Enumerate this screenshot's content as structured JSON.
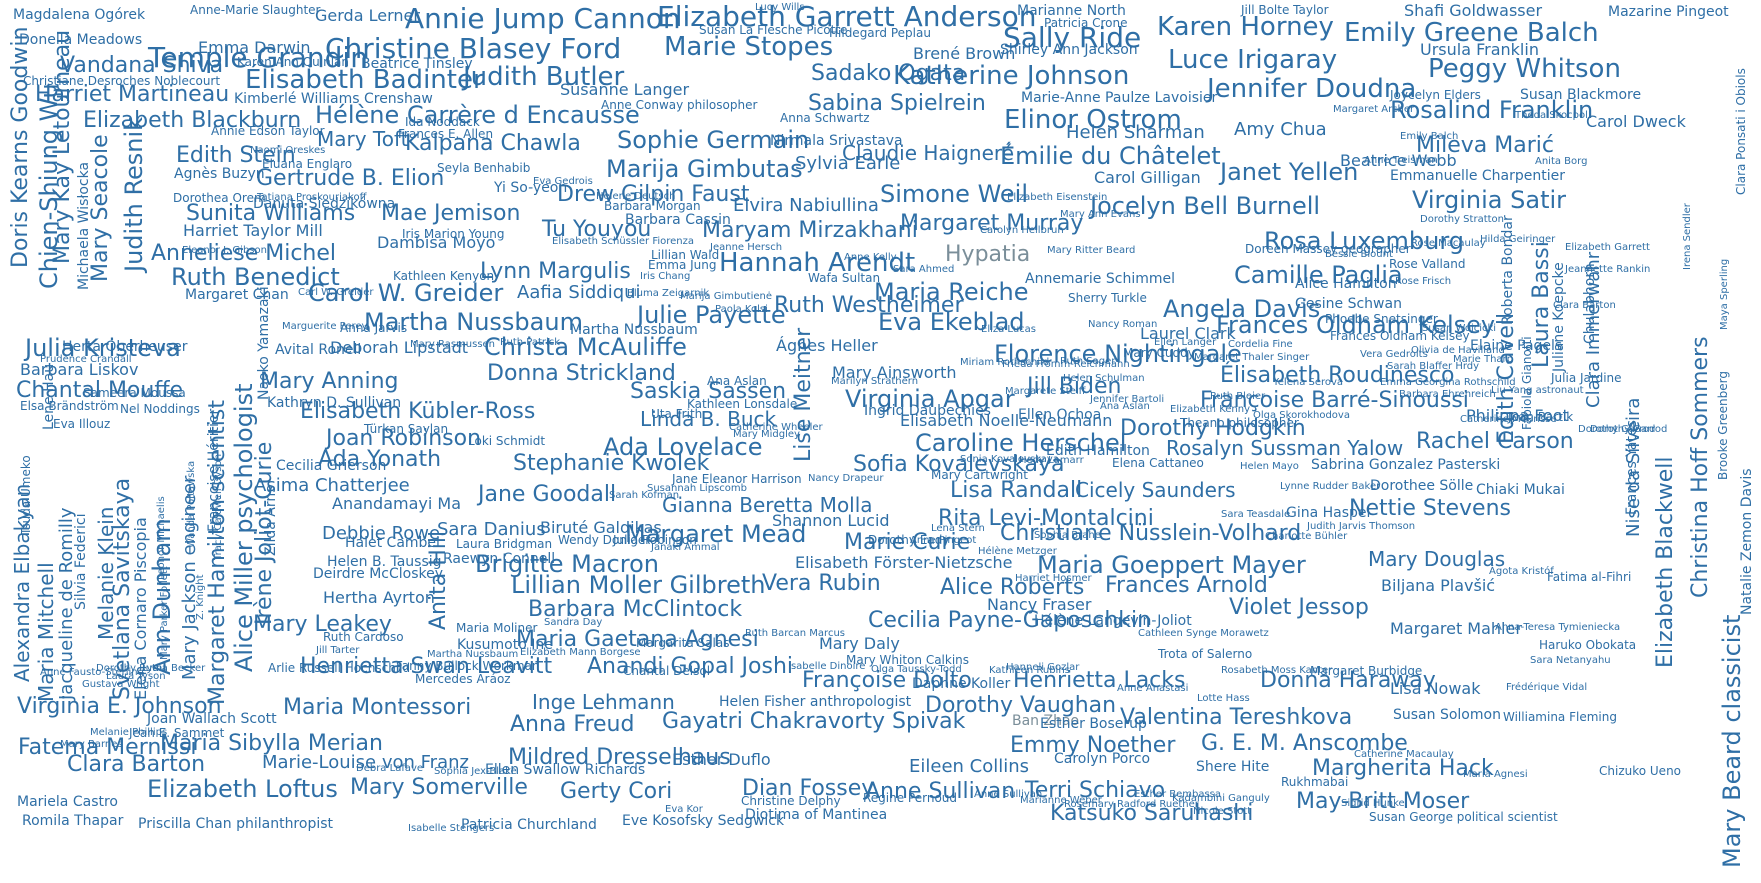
{
  "palette": {
    "primary": "#2f6fa6",
    "muted": "#7a8e99",
    "background": "#ffffff"
  },
  "words": {
    "w1": "Annie Jump Cannon",
    "w2": "Elizabeth Garrett Anderson",
    "w3": "Temple Grandin",
    "w4": "Christine Blasey Ford",
    "w5": "Marie Stopes",
    "w6": "Sally Ride",
    "w7": "Karen Horney",
    "w8": "Emily Greene Balch",
    "w9": "Vandana Shiva",
    "w10": "Luce Irigaray",
    "w11": "Peggy Whitson",
    "w12": "Harriet Martineau",
    "w13": "Élisabeth Badinter",
    "w14": "Judith Butler",
    "w15": "Sadako Ogata",
    "w16": "Katherine Johnson",
    "w17": "Jennifer Doudna",
    "w18": "Elizabeth Blackburn",
    "w19": "Hélène Carrère d Encausse",
    "w20": "Sabina Spielrein",
    "w21": "Elinor Ostrom",
    "w22": "Rosalind Franklin",
    "w23": "Edith Stein",
    "w24": "Mary Toft",
    "w25": "Kalpana Chawla",
    "w26": "Sophie Germain",
    "w27": "Claudie Haigneré",
    "w28": "Helen Sharman",
    "w29": "Amy Chua",
    "w30": "Mileva Marić",
    "w31": "Gertrude B. Elion",
    "w32": "Marija Gimbutas",
    "w33": "Émilie du Châtelet",
    "w34": "Janet Yellen",
    "w35": "Sunita Williams",
    "w36": "Drew Gilpin Faust",
    "w37": "Simone Weil",
    "w38": "Jocelyn Bell Burnell",
    "w39": "Virginia Satir",
    "w40": "Mae Jemison",
    "w41": "Tu Youyou",
    "w42": "Maryam Mirzakhani",
    "w43": "Margaret Murray",
    "w44": "Anneliese Michel",
    "w45": "Hannah Arendt",
    "w46": "Hypatia",
    "w47": "Rosa Luxemburg",
    "w48": "Ruth Benedict",
    "w49": "Lynn Margulis",
    "w50": "Camille Paglia",
    "w51": "Carol W. Greider",
    "w52": "Maria Reiche",
    "w53": "Ruth Westheimer",
    "w54": "Martha Nussbaum",
    "w55": "Julie Payette",
    "w56": "Eva Ekeblad",
    "w57": "Angela Davis",
    "w58": "Frances Oldham Kelsey",
    "w59": "Julia Kristeva",
    "w60": "Christa McAuliffe",
    "w61": "Florence Nightingale",
    "w62": "Donna Strickland",
    "w63": "Élisabeth Roudinesco",
    "w64": "Mary Anning",
    "w65": "Virginia Apgar",
    "w66": "Jill Biden",
    "w67": "Françoise Barré-Sinoussi",
    "w68": "Chantal Mouffe",
    "w69": "Saskia Sassen",
    "w70": "Elisabeth Kübler-Ross",
    "w71": "Joan Robinson",
    "w72": "Linda B. Buck",
    "w73": "Dorothy Hodgkin",
    "w74": "Rachel Carson",
    "w75": "Ada Lovelace",
    "w76": "Caroline Herschel",
    "w77": "Ada Yonath",
    "w78": "Stephanie Kwolek",
    "w79": "Sofia Kovalevskaya",
    "w80": "Rosalyn Sussman Yalow",
    "w81": "Jane Goodall",
    "w82": "Lisa Randall",
    "w83": "Cicely Saunders",
    "w84": "Gianna Beretta Molla",
    "w85": "Rita Levi-Montalcini",
    "w86": "Nettie Stevens",
    "w87": "Margaret Mead",
    "w88": "Marie Curie",
    "w89": "Christiane Nüsslein-Volhard",
    "w90": "Brigitte Macron",
    "w91": "Maria Goeppert Mayer",
    "w92": "Mary Douglas",
    "w93": "Lillian Moller Gilbreth",
    "w94": "Vera Rubin",
    "w95": "Alice Roberts",
    "w96": "Frances Arnold",
    "w97": "Barbara McClintock",
    "w98": "Cecilia Payne-Gaposchkin",
    "w99": "Violet Jessop",
    "w100": "Mary Leakey",
    "w101": "Maria Gaetana Agnesi",
    "w102": "Henrietta Swan Leavitt",
    "w103": "Anandi Gopal Joshi",
    "w104": "Françoise Dolto",
    "w105": "Henrietta Lacks",
    "w106": "Donna Haraway",
    "w107": "Virginia E. Johnson",
    "w108": "Maria Montessori",
    "w109": "Inge Lehmann",
    "w110": "Dorothy Vaughan",
    "w111": "Valentina Tereshkova",
    "w112": "Fatema Mernissi",
    "w113": "Maria Sibylla Merian",
    "w114": "Anna Freud",
    "w115": "Gayatri Chakravorty Spivak",
    "w116": "Emmy Noether",
    "w117": "G. E. M. Anscombe",
    "w118": "Clara Barton",
    "w119": "Mildred Dresselhaus",
    "w120": "Margherita Hack",
    "w121": "Elizabeth Loftus",
    "w122": "Mary Somerville",
    "w123": "Gerty Cori",
    "w124": "Dian Fossey",
    "w125": "Anne Sullivan",
    "w126": "Terri Schiavo",
    "w127": "May-Britt Moser",
    "w128": "Katsuko Saruhashi",
    "w129": "Marie-Louise von Franz",
    "w130": "Gerda Lerner",
    "w131": "Marianne North",
    "w132": "Shafi Goldwasser",
    "w133": "Mazarine Pingeot",
    "w134": "Emma Darwin",
    "w135": "Brené Brown",
    "w136": "Shirley Ann Jackson",
    "w137": "Ursula Franklin",
    "w138": "Susanne Langer",
    "w139": "Nirmala Srivastava",
    "w140": "Carol Dweck",
    "w141": "Sylvia Earle",
    "w142": "Carol Gilligan",
    "w143": "Beatrice Webb",
    "w144": "Emmanuelle Charpentier",
    "w145": "Dambisa Moyo",
    "w146": "Elvira Nabiullina",
    "w147": "Annemarie Schimmel",
    "w148": "Laurel Clark",
    "w149": "Barbara Liskov",
    "w150": "Deborah Lipstadt",
    "w151": "Carl W. Greider",
    "w152": "Aafia Siddiqui",
    "w153": "Mary Ainsworth",
    "w154": "Ágnes Heller",
    "w155": "Elaine Pagels",
    "w156": "Philippa Foot",
    "w157": "Sabrina Gonzalez Pasterski",
    "w158": "Chiaki Mukai",
    "w159": "Asima Chatterjee",
    "w160": "Anandamayi Ma",
    "w161": "Sara Danius",
    "w162": "Debbie Rowe",
    "w163": "Biruté Galdikas",
    "w164": "Shannon Lucid",
    "w165": "Gina Haspel",
    "w166": "Hertha Ayrton",
    "w167": "Deirdre McCloskey",
    "w168": "Elisabeth Förster-Nietzsche",
    "w169": "Biljana Plavšić",
    "w170": "Nancy Fraser",
    "w171": "Mary Daly",
    "w172": "Margaret Mahler",
    "w173": "Lisa Nowak",
    "w174": "Joan Wallach Scott",
    "w175": "Esther Duflo",
    "w176": "Eileen Collins",
    "w177": "Ban Zhao",
    "w178": "Romila Thapar",
    "w179": "Priscilla Chan philanthropist",
    "w180": "Patricia Churchland",
    "w181": "Eve Kosofsky Sedgwick",
    "w182": "Diotima of Mantinea",
    "w183": "Carolyn Porco",
    "w184": "Shere Hite",
    "w185": "Mariela Castro",
    "w186": "Ellen Swallow Richards",
    "w187": "Magdalena Ogórek",
    "w188": "Donella Meadows",
    "w189": "Anne-Marie Slaughter",
    "w190": "Christiane Desroches Noblecourt",
    "w191": "Beatrice Tinsley",
    "w192": "Kimberlé Williams Crenshaw",
    "w193": "Annie Edson Taylor",
    "w194": "Agnès Buzyn",
    "w195": "Dorothea Orem",
    "w196": "Danuta Siedzikówna",
    "w197": "Harriet Taylor Mill",
    "w198": "Margaret Chan",
    "w199": "Herta Oberheuser",
    "w200": "Avital Ronell",
    "w201": "Kathryn D. Sullivan",
    "w202": "Cecilia Grierson",
    "w203": "Halet Cambel",
    "w204": "Helen B. Taussig",
    "w205": "Ruth Cardoso",
    "w206": "Kusumoto Ine",
    "w207": "Raewyn Connell",
    "w208": "Wendy Doniger",
    "w209": "Laura Bridgman",
    "w210": "Julia Robinson",
    "w211": "Ingrid Daubechies",
    "w212": "Ellen Ochoa",
    "w213": "Elisabeth Noelle-Neumann",
    "w214": "Edith Hamilton",
    "w215": "Dorothee Sölle",
    "w216": "Elena Cattaneo",
    "w217": "Sara Teasdale",
    "w218": "Alice Hamilton",
    "w219": "Gesine Schwan",
    "w220": "Phoebe Snetsinger",
    "w221": "Eleanor J. Gibson",
    "w222": "Kathleen Kenyon",
    "w223": "Lillian Wald",
    "w224": "Bluma Zeigarnik",
    "w225": "Eliza Lucas",
    "w226": "Martha Nussbaum",
    "w227": "Sarah Kofman",
    "w228": "Hélène Langevin-Joliot",
    "w229": "Mary Whiton Calkins",
    "w230": "Daphne Koller",
    "w231": "Helen Fisher anthropologist",
    "w232": "Esther Boserup",
    "w233": "Frances Oldham Kelsey",
    "w234": "Christine Delphy",
    "w235": "Isabelle Stengers",
    "w236": "Susan George political scientist",
    "w237": "Doris Kearns Goodwin",
    "w238": "Chien-Shiung Wu",
    "w239": "Mary Kay Letourneau",
    "w240": "Mary Seacole",
    "w241": "Judith Resnik",
    "w242": "Michaela Wisłocka",
    "w243": "Alexandra Elbakyan",
    "w244": "Maria Mitchell",
    "w245": "Jacqueline de Romilly",
    "w246": "Melanie Klein",
    "w247": "Svetlana Savitskaya",
    "w248": "Elena Cornaro Piscopia",
    "w249": "Ann Dunham",
    "w250": "Mary Jackson engineer",
    "w251": "Margaret Hamilton scientist",
    "w252": "Alice Miller psychologist",
    "w253": "Irène Joliot-Curie",
    "w254": "Naoko Yamazaki",
    "w255": "Anita Hill",
    "w256": "Lise Meitner",
    "w257": "Edith Cavell",
    "w258": "Laura Bassi",
    "w259": "Juliane Koepcke",
    "w260": "Clara Immerwahr",
    "w261": "Nise da Silveira",
    "w262": "Elizabeth Blackwell",
    "w263": "Christina Hoff Sommers",
    "w264": "Mary Beard classicist",
    "w265": "Natalie Zemon Davis",
    "w266": "Françoise Héritier",
    "w267": "Zilda Arns",
    "w268": "Silvia Federici",
    "w269": "Lene Hau",
    "w270": "Roberta Bondar",
    "w271": "Frances Yates",
    "w272": "Nancy Roman",
    "w273": "Mary Cuddy",
    "w274": "Rose Valland",
    "w275": "Ana Aslan",
    "w276": "Tsuda Umeko",
    "w277": "Sameera Moussa",
    "w278": "Eva Illouz",
    "w279": "Nel Noddings",
    "w280": "Elsa Brändström",
    "w281": "Yi So-yeon",
    "w282": "Ida Noddack",
    "w283": "Anna Schwartz",
    "w284": "Sonia Kovalevskaya",
    "w285": "Anita Borg",
    "w286": "Uta Frith",
    "w287": "Loki Schmidt",
    "w288": "Türkan Saylan",
    "w289": "Frances E. Allen",
    "w290": "Eluana Englaro",
    "w291": "Seyla Benhabib",
    "w292": "Barbara Cassin",
    "w293": "Barbara Morgan",
    "w294": "Emma Jung",
    "w295": "Wafa Sultan",
    "w296": "Sherry Turkle",
    "w297": "Charlotte Bühler",
    "w298": "Lucy Wills",
    "w299": "Eva Gedrois",
    "w300": "Regine Pernoud",
    "w301": "Anne Conway philosopher",
    "w302": "Karen Ann Quinlan",
    "w303": "Anne Treisman",
    "w304": "Rose Frisch",
    "w305": "Theda Skocpol",
    "w306": "Hildegard Peplau",
    "w307": "Patricia Crone",
    "w308": "Susan La Flesche Picotte",
    "w309": "Jill Bolte Taylor",
    "w310": "Joycelyn Elders",
    "w311": "Susan Blackmore",
    "w312": "Dorothy Garrod",
    "w313": "Marie-Anne Paulze Lavoisier",
    "w314": "Theano philosopher",
    "w315": "Olga Skorokhodova",
    "w316": "Jane Eleanor Harrison",
    "w317": "Susan Solomon",
    "w318": "Williamina Fleming",
    "w319": "Sigrid Hunke",
    "w320": "Rukhmabai",
    "w321": "Ana Aslan",
    "w322": "Kathleen Lonsdale",
    "w323": "Catherine Wheeler",
    "w324": "Lena Stern",
    "w325": "Dorothy Eady",
    "w326": "Janaki Ammal",
    "w327": "Susannah Lipscomb",
    "w328": "Nancy Drapeur",
    "w329": "Mary Cartwright",
    "w330": "Hedy Lamarr",
    "w331": "Sophia Brahe",
    "w332": "Anne Pingeot",
    "w333": "Hélène Metzger",
    "w334": "Harriet Hosmer",
    "w335": "Fatima al-Fihri",
    "w336": "Ágota Kristóf",
    "w337": "Cathleen Synge Morawetz",
    "w338": "Anna-Teresa Tymieniecka",
    "w339": "Haruko Obokata",
    "w340": "Sara Netanyahu",
    "w341": "Frédérique Vidal",
    "w342": "Helene Deutsch",
    "w343": "Marguerite Perey",
    "w344": "Tatiana Proskouriakoff",
    "w345": "Naomi Oreskes",
    "w346": "Prudence Crandall",
    "w347": "Bessie Blount",
    "w348": "Ruth Patrick",
    "w349": "Emily Balch",
    "w350": "Dorothy Stratton",
    "w351": "Marija Gimbutienė",
    "w352": "Paola Kolsi",
    "w353": "Ruth Sager",
    "w354": "Jennifer Bartoli",
    "w355": "Elizabeth Kenny",
    "w356": "Ruth Bleier",
    "w357": "Helen Mayo",
    "w358": "Lynne Rudder Baker",
    "w359": "Judith Jarvis Thomson",
    "w360": "Mary Midgley",
    "w361": "Iris Marion Young",
    "w362": "Elisabeth Schüssler Fiorenza",
    "w363": "Iris Chang",
    "w364": "Doreen Massey geographer",
    "w365": "Marilyn Strathern",
    "w366": "Mary Ritter Beard",
    "w367": "Carolyn Heilbrun",
    "w368": "Jeanne Hersch",
    "w369": "Anne Kelly",
    "w370": "Sara Ahmed",
    "w371": "Elizabeth Eisenstein",
    "w372": "Mary Ann Evans",
    "w373": "Anna Jarvis",
    "w374": "Mary Rasmussen",
    "w375": "Rose Macaulay",
    "w376": "Hilda Geiringer",
    "w377": "Clara Ponsati i Obiols",
    "w378": "Jeannette Rankin",
    "w379": "Fabiola Gianotti",
    "w380": "Chulabhorn",
    "w381": "Elizabeth Garrett",
    "w382": "Clara Barton",
    "w383": "Brooke Greenberg",
    "w384": "Maya Sperling",
    "w385": "Irena Sendler",
    "w386": "Arlie Russell Hochschild",
    "w387": "Mercedes Aráoz",
    "w388": "Martha Nussbaum",
    "w389": "Fanny Bullock Workman",
    "w390": "Maria Moliner",
    "w391": "Sandra Day",
    "w392": "Margarita Salas",
    "w393": "Ruth Barcan Marcus",
    "w394": "Isabelle Dinoire",
    "w395": "Olga Taussky-Todd",
    "w396": "Kathleen Rubins",
    "w397": "Trota of Salerno",
    "w398": "Elizabeth Mann Borgese",
    "w399": "Chantal Delsol",
    "w400": "Jill Tarter",
    "w401": "Z. Knight",
    "w402": "Tracy Caldwell Dyson",
    "w403": "Leonor Michaelis",
    "w404": "Mary Parker Follett",
    "w405": "Wanda Poltawska",
    "w406": "Lydia Becker",
    "w407": "Gustava Wright",
    "w408": "Laura Tyson",
    "w409": "Anne Fausto-Sterling",
    "w410": "Dorothy Ruth",
    "w411": "Melanie Phillips",
    "w412": "Jean E. Sammet",
    "w413": "Mary Barnes",
    "w414": "Rosemary Radford Ruether",
    "w415": "Debra Lafave",
    "w416": "Sophia Jex-Blake",
    "w417": "Marianne Weber",
    "w418": "Anne Sullivan",
    "w419": "Esther Bembassa",
    "w420": "Kadambini Ganguly",
    "w421": "Margaret Archer",
    "w422": "Catherine Macaulay",
    "w423": "Maria Agnesi",
    "w424": "Chizuko Ueno",
    "w425": "Eva Kor",
    "w426": "Nicole Stott",
    "w427": "Margaret Burbidge",
    "w428": "Rosabeth Moss Kanter",
    "w429": "Hanneli Gozlar",
    "w430": "Anne Anastasi",
    "w431": "Lotte Hass",
    "w432": "Dorothy Garrod",
    "w433": "Jean Bartik",
    "w434": "Catherine Meurisse",
    "w435": "Emma Georgina Rothschild",
    "w436": "Yelena Serova",
    "w437": "Vera Gedroits",
    "w438": "Sarah Blaffer Hrdy",
    "w439": "Barbara Ehrenreich",
    "w440": "Liu Yang astronaut",
    "w441": "Julia Jardine",
    "w442": "Olivia de Havilland",
    "w443": "Marie Tharp",
    "w444": "Susan Wojcicki",
    "w445": "Ellen Langer",
    "w446": "Cordelia Fine",
    "w447": "Miriam Rothschild",
    "w448": "Frieda Fromm-Reichmann",
    "w449": "Helen Schulman",
    "w450": "Margaret Thaler Singer",
    "w451": "Margarete Steiff"
  }
}
